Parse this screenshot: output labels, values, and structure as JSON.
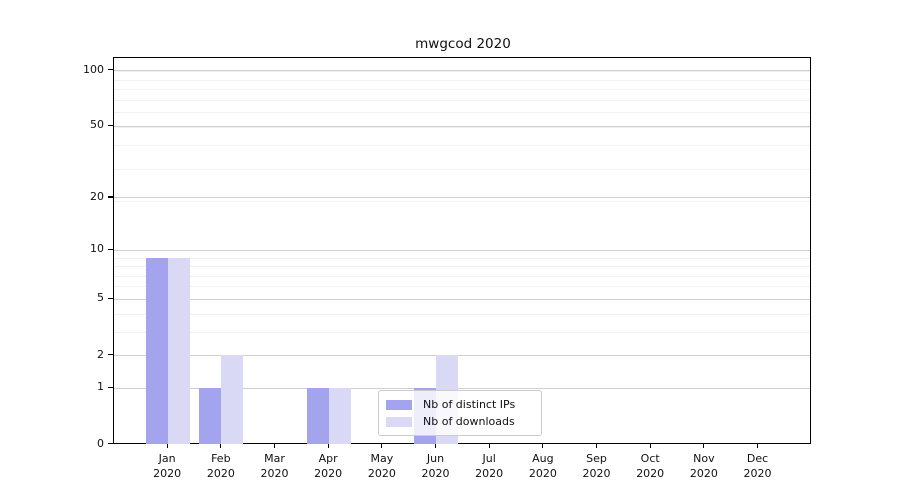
{
  "chart_data": {
    "type": "bar",
    "title": "mwgcod 2020",
    "categories": [
      "Jan",
      "Feb",
      "Mar",
      "Apr",
      "May",
      "Jun",
      "Jul",
      "Aug",
      "Sep",
      "Oct",
      "Nov",
      "Dec"
    ],
    "x_year": "2020",
    "y_ticks": [
      0,
      1,
      2,
      5,
      10,
      20,
      50,
      100
    ],
    "y_scale": "log(1+v)",
    "ylim": [
      0,
      115
    ],
    "grid": "on",
    "legend_position": "lower center inside plot",
    "series": [
      {
        "name": "Nb of distinct IPs",
        "color": "#a3a3ee",
        "values": [
          9,
          1,
          0,
          1,
          0,
          1,
          0,
          0,
          0,
          0,
          0,
          0
        ]
      },
      {
        "name": "Nb of downloads",
        "color": "#d9d9f6",
        "values": [
          9,
          2,
          0,
          1,
          0,
          2,
          0,
          0,
          0,
          0,
          0,
          0
        ]
      }
    ],
    "colors": {
      "major_grid": "#cfcfcf",
      "minor_grid": "#f1f1f1",
      "axis": "#000000",
      "text": "#111111"
    }
  }
}
